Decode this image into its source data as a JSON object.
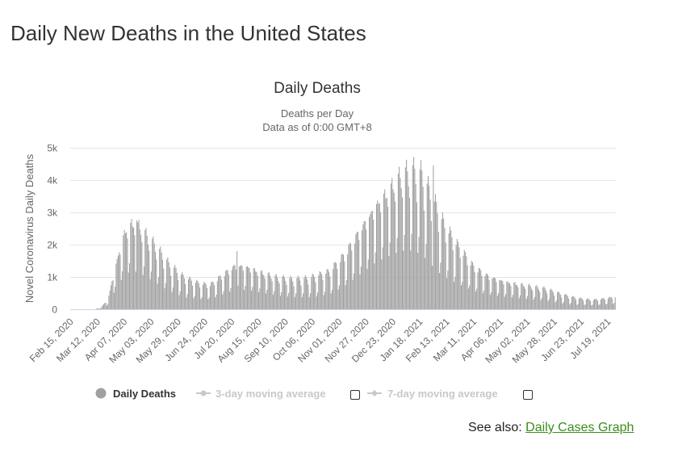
{
  "page": {
    "title": "Daily New Deaths in the United States",
    "see_also_label": "See also:",
    "see_also_link": "Daily Cases Graph"
  },
  "colors": {
    "bar": "#a0a0a0",
    "grid": "#e6e6e6",
    "text": "#333333",
    "axis_text": "#666666",
    "legend_inactive": "#c8c8c8",
    "link": "#3a8d1c"
  },
  "chart_data": {
    "type": "bar",
    "title": "Daily Deaths",
    "subtitle_lines": [
      "Deaths per Day",
      "Data as of 0:00 GMT+8"
    ],
    "ylabel": "Novel Coronavirus Daily Deaths",
    "xlabel": "",
    "ylim": [
      0,
      5000
    ],
    "yticks": [
      0,
      1000,
      2000,
      3000,
      4000,
      5000
    ],
    "ytick_labels": [
      "0",
      "1k",
      "2k",
      "3k",
      "4k",
      "5k"
    ],
    "x_start": "2020-02-15",
    "num_days": 528,
    "xtick_labels": [
      "Feb 15, 2020",
      "Mar 12, 2020",
      "Apr 07, 2020",
      "May 03, 2020",
      "May 29, 2020",
      "Jun 24, 2020",
      "Jul 20, 2020",
      "Aug 15, 2020",
      "Sep 10, 2020",
      "Oct 06, 2020",
      "Nov 01, 2020",
      "Nov 27, 2020",
      "Dec 23, 2020",
      "Jan 18, 2021",
      "Feb 13, 2021",
      "Mar 11, 2021",
      "Apr 06, 2021",
      "May 02, 2021",
      "May 28, 2021",
      "Jun 23, 2021",
      "Jul 19, 2021"
    ],
    "tick_interval_days": 26,
    "trend_keypoints": [
      [
        0,
        0
      ],
      [
        23,
        0
      ],
      [
        29,
        40
      ],
      [
        36,
        250
      ],
      [
        44,
        1200
      ],
      [
        52,
        2000
      ],
      [
        60,
        2250
      ],
      [
        66,
        2150
      ],
      [
        80,
        1700
      ],
      [
        95,
        1150
      ],
      [
        110,
        800
      ],
      [
        125,
        650
      ],
      [
        135,
        620
      ],
      [
        150,
        950
      ],
      [
        160,
        1150
      ],
      [
        172,
        1100
      ],
      [
        185,
        950
      ],
      [
        200,
        820
      ],
      [
        215,
        760
      ],
      [
        230,
        780
      ],
      [
        250,
        950
      ],
      [
        265,
        1400
      ],
      [
        280,
        2050
      ],
      [
        295,
        2700
      ],
      [
        310,
        3150
      ],
      [
        320,
        3450
      ],
      [
        330,
        3550
      ],
      [
        340,
        3400
      ],
      [
        350,
        2800
      ],
      [
        362,
        2100
      ],
      [
        375,
        1600
      ],
      [
        390,
        1100
      ],
      [
        405,
        850
      ],
      [
        420,
        720
      ],
      [
        440,
        620
      ],
      [
        460,
        520
      ],
      [
        475,
        380
      ],
      [
        490,
        280
      ],
      [
        505,
        240
      ],
      [
        515,
        270
      ],
      [
        527,
        330
      ]
    ],
    "weekday_factors": [
      0.5,
      0.62,
      1.18,
      1.27,
      1.22,
      1.15,
      1.0
    ],
    "peaks": [
      {
        "day": 64,
        "value": 2750
      },
      {
        "day": 161,
        "value": 1800
      },
      {
        "day": 351,
        "value": 4450
      }
    ],
    "series": [
      {
        "name": "Daily Deaths",
        "active": true
      },
      {
        "name": "3-day moving average",
        "active": false
      },
      {
        "name": "7-day moving average",
        "active": false
      }
    ]
  }
}
